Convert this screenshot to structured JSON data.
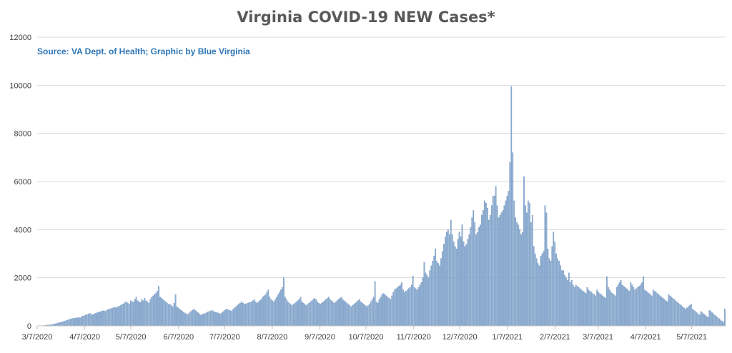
{
  "chart_data": {
    "type": "bar",
    "title": "Virginia COVID-19 NEW Cases*",
    "annotation": "Source: VA Dept. of Health; Graphic by Blue Virginia",
    "xlabel": "",
    "ylabel": "",
    "ylim": [
      0,
      12000
    ],
    "yticks": [
      0,
      2000,
      4000,
      6000,
      8000,
      10000,
      12000
    ],
    "grid": true,
    "legend": "none",
    "colors": {
      "bar_fill": "#8FAFD3",
      "bar_edge": "#5B84B5",
      "title": "#595959",
      "annotation": "#2E75B6"
    },
    "x_start": "3/7/2020",
    "x_end": "5/29/2021",
    "xticks": [
      "3/7/2020",
      "4/7/2020",
      "5/7/2020",
      "6/7/2020",
      "7/7/2020",
      "8/7/2020",
      "9/7/2020",
      "10/7/2020",
      "11/7/2020",
      "12/7/2020",
      "1/7/2021",
      "2/7/2021",
      "3/7/2021",
      "4/7/2021",
      "5/7/2021"
    ],
    "series": [
      {
        "values": [
          2,
          5,
          8,
          10,
          12,
          18,
          25,
          35,
          40,
          45,
          55,
          65,
          80,
          95,
          110,
          125,
          140,
          160,
          180,
          200,
          220,
          240,
          260,
          280,
          300,
          310,
          320,
          330,
          340,
          350,
          330,
          380,
          410,
          430,
          450,
          470,
          500,
          520,
          480,
          460,
          500,
          520,
          540,
          560,
          580,
          600,
          620,
          640,
          600,
          650,
          680,
          700,
          720,
          740,
          760,
          780,
          750,
          800,
          820,
          850,
          900,
          920,
          980,
          1000,
          950,
          900,
          1050,
          1020,
          980,
          1100,
          1200,
          1050,
          1000,
          980,
          1100,
          1050,
          1150,
          1050,
          1000,
          950,
          1100,
          1180,
          1250,
          1300,
          1350,
          1450,
          1650,
          1200,
          1150,
          1100,
          1050,
          1000,
          950,
          900,
          900,
          850,
          800,
          950,
          1300,
          800,
          750,
          700,
          650,
          600,
          550,
          520,
          500,
          480,
          550,
          600,
          650,
          700,
          650,
          600,
          550,
          500,
          450,
          480,
          500,
          520,
          550,
          580,
          600,
          620,
          650,
          600,
          580,
          560,
          540,
          520,
          500,
          550,
          600,
          650,
          700,
          680,
          660,
          640,
          620,
          700,
          750,
          800,
          850,
          900,
          950,
          1000,
          950,
          900,
          920,
          940,
          960,
          980,
          1000,
          1050,
          1100,
          1000,
          950,
          1000,
          1050,
          1100,
          1200,
          1250,
          1300,
          1400,
          1500,
          1200,
          1100,
          1050,
          1000,
          1100,
          1200,
          1300,
          1400,
          1500,
          1600,
          2000,
          1200,
          1100,
          1000,
          950,
          900,
          850,
          900,
          950,
          1000,
          1050,
          1100,
          1200,
          1000,
          950,
          900,
          850,
          900,
          950,
          1000,
          1050,
          1100,
          1150,
          1100,
          1000,
          950,
          900,
          950,
          1000,
          1050,
          1100,
          1150,
          1200,
          1100,
          1050,
          1000,
          950,
          1000,
          1050,
          1100,
          1150,
          1200,
          1100,
          1050,
          1000,
          950,
          900,
          850,
          800,
          850,
          900,
          950,
          1000,
          1050,
          1100,
          1000,
          950,
          900,
          850,
          800,
          850,
          900,
          1000,
          1100,
          1200,
          1850,
          1000,
          950,
          1100,
          1200,
          1300,
          1350,
          1300,
          1250,
          1200,
          1150,
          1100,
          1250,
          1400,
          1500,
          1550,
          1600,
          1650,
          1700,
          1800,
          1500,
          1400,
          1450,
          1500,
          1550,
          1600,
          1700,
          2080,
          1600,
          1550,
          1500,
          1600,
          1700,
          1800,
          2000,
          2650,
          2200,
          2100,
          2000,
          2300,
          2500,
          2700,
          2900,
          3200,
          2700,
          2600,
          2500,
          2800,
          3100,
          3400,
          3700,
          3900,
          4000,
          3800,
          4400,
          3800,
          3500,
          3300,
          3200,
          3600,
          3900,
          3700,
          4200,
          3500,
          3300,
          3400,
          3600,
          3800,
          4100,
          4500,
          4800,
          4300,
          3800,
          3900,
          4100,
          4200,
          4600,
          4800,
          5200,
          5100,
          4900,
          4400,
          4600,
          5000,
          5400,
          5400,
          5800,
          5000,
          4500,
          4600,
          4700,
          4800,
          5000,
          5200,
          5400,
          5600,
          6800,
          9950,
          7200,
          5200,
          4500,
          4300,
          4200,
          4000,
          3800,
          3900,
          6200,
          5000,
          4700,
          5200,
          5100,
          4300,
          4600,
          3300,
          3000,
          2800,
          2600,
          2500,
          2900,
          3000,
          3100,
          5000,
          4700,
          3200,
          2800,
          2700,
          3300,
          3900,
          3500,
          3000,
          2800,
          2700,
          2500,
          2300,
          2300,
          2100,
          2000,
          1900,
          2200,
          1800,
          1900,
          1700,
          1600,
          1700,
          1650,
          1600,
          1550,
          1500,
          1450,
          1400,
          1350,
          1600,
          1500,
          1450,
          1400,
          1350,
          1300,
          1250,
          1500,
          1400,
          1350,
          1300,
          1250,
          1200,
          1150,
          2050,
          1600,
          1500,
          1400,
          1350,
          1300,
          1250,
          1600,
          1700,
          1800,
          1900,
          1700,
          1650,
          1600,
          1550,
          1500,
          1450,
          1800,
          1700,
          1600,
          1500,
          1550,
          1600,
          1650,
          1700,
          1800,
          2050,
          1500,
          1450,
          1400,
          1350,
          1300,
          1250,
          1500,
          1450,
          1400,
          1350,
          1300,
          1250,
          1200,
          1150,
          1100,
          1050,
          1000,
          1300,
          1250,
          1200,
          1150,
          1100,
          1050,
          1000,
          950,
          900,
          850,
          800,
          750,
          700,
          750,
          800,
          850,
          900,
          700,
          650,
          600,
          550,
          500,
          450,
          600,
          550,
          500,
          450,
          400,
          350,
          650,
          600,
          550,
          500,
          450,
          400,
          350,
          300,
          250,
          200,
          150,
          700
        ]
      }
    ]
  }
}
